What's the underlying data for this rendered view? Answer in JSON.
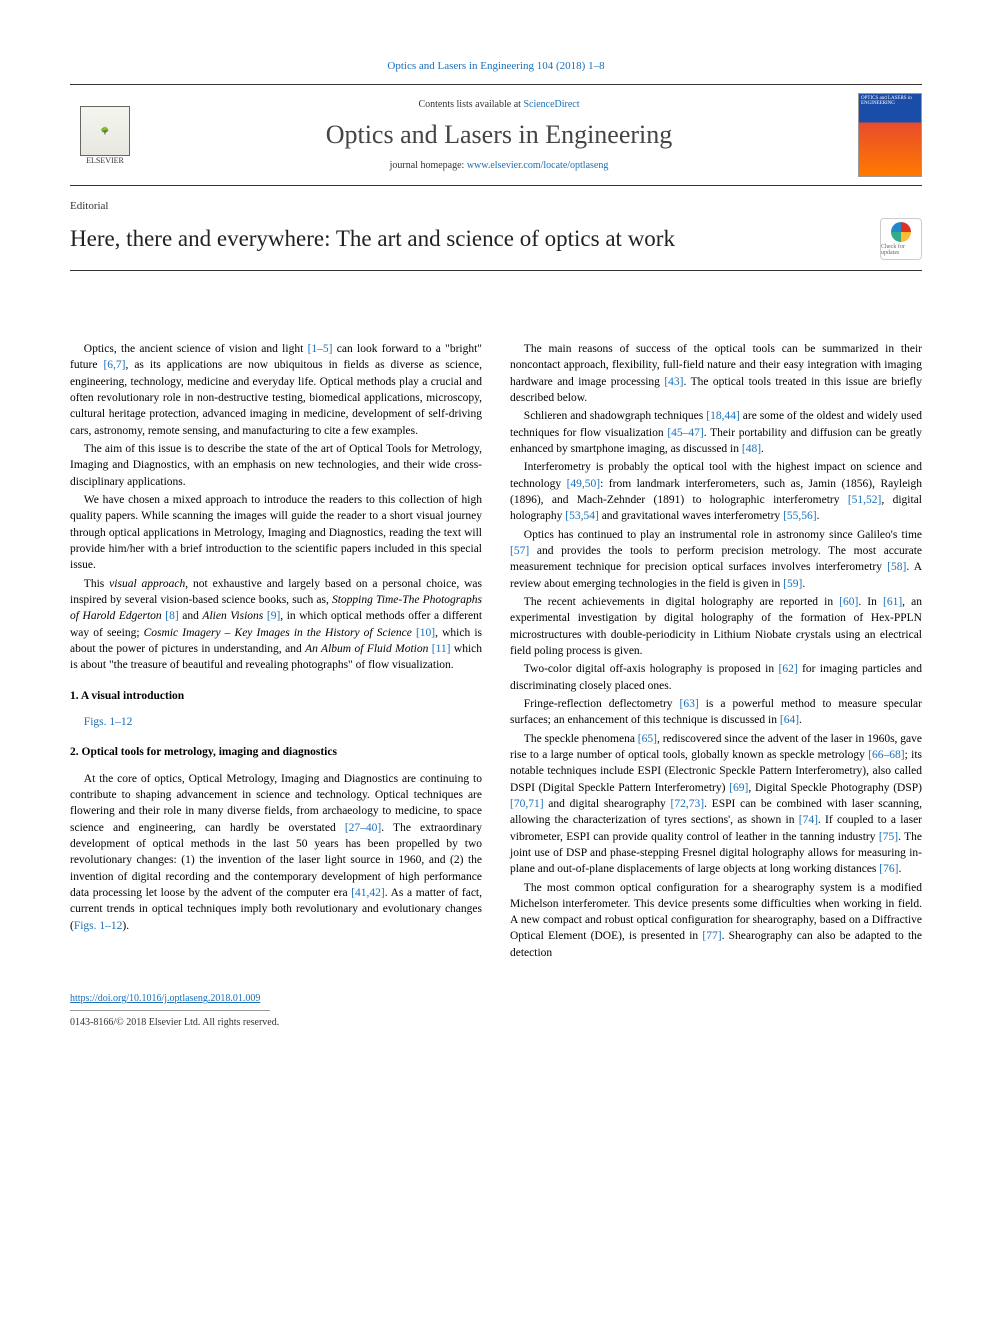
{
  "citation": "Optics and Lasers in Engineering 104 (2018) 1–8",
  "masthead": {
    "publisher": "ELSEVIER",
    "contents_prefix": "Contents lists available at ",
    "contents_link": "ScienceDirect",
    "journal": "Optics and Lasers in Engineering",
    "homepage_prefix": "journal homepage: ",
    "homepage_url": "www.elsevier.com/locate/optlaseng",
    "cover_text": "OPTICS and LASERS in ENGINEERING"
  },
  "article_type": "Editorial",
  "title": "Here, there and everywhere: The art and science of optics at work",
  "crossmark": "Check for updates",
  "body": {
    "left": {
      "p1a": "Optics, the ancient science of vision and light ",
      "p1_c1": "[1–5]",
      "p1b": " can look forward to a \"bright\" future ",
      "p1_c2": "[6,7]",
      "p1c": ", as its applications are now ubiquitous in fields as diverse as science, engineering, technology, medicine and everyday life. Optical methods play a crucial and often revolutionary role in non-destructive testing, biomedical applications, microscopy, cultural heritage protection, advanced imaging in medicine, development of self-driving cars, astronomy, remote sensing, and manufacturing to cite a few examples.",
      "p2": "The aim of this issue is to describe the state of the art of Optical Tools for Metrology, Imaging and Diagnostics, with an emphasis on new technologies, and their wide cross-disciplinary applications.",
      "p3": "We have chosen a mixed approach to introduce the readers to this collection of high quality papers. While scanning the images will guide the reader to a short visual journey through optical applications in Metrology, Imaging and Diagnostics, reading the text will provide him/her with a brief introduction to the scientific papers included in this special issue.",
      "p4a": "This ",
      "p4_em1": "visual approach",
      "p4b": ", not exhaustive and largely based on a personal choice, was inspired by several vision-based science books, such as, ",
      "p4_em2": "Stopping Time-The Photographs of Harold Edgerton",
      "p4c": " ",
      "p4_c1": "[8]",
      "p4d": " and ",
      "p4_em3": "Alien Visions",
      "p4e": " ",
      "p4_c2": "[9]",
      "p4f": ", in which optical methods offer a different way of seeing; ",
      "p4_em4": "Cosmic Imagery – Key Images in the History of Science",
      "p4g": " ",
      "p4_c3": "[10]",
      "p4h": ", which is about the power of pictures in understanding, and ",
      "p4_em5": "An Album of Fluid Motion",
      "p4i": " ",
      "p4_c4": "[11]",
      "p4j": " which is about \"the treasure of beautiful and revealing photographs\" of flow visualization.",
      "h1": "1. A visual introduction",
      "figs": "Figs. 1–12",
      "h2": "2. Optical tools for metrology, imaging and diagnostics",
      "p5a": "At the core of optics, Optical Metrology, Imaging and Diagnostics are continuing to contribute to shaping advancement in science and technology. Optical techniques are flowering and their role in many diverse fields, from archaeology to medicine, to space science and engineering, can hardly be overstated ",
      "p5_c1": "[27–40]",
      "p5b": ". The extraordinary development of optical methods in the last 50 years has been propelled by two revolutionary changes: (1) the invention of the laser light source in 1960, and (2) the invention of digital recording and the contemporary development of high performance data processing let loose by the advent of the computer era ",
      "p5_c2": "[41,42]",
      "p5c": ". As a matter of fact, current trends in optical techniques imply both revolutionary and evolutionary changes (",
      "p5_c3": "Figs. 1–12",
      "p5d": ")."
    },
    "right": {
      "p1a": "The main reasons of success of the optical tools can be summarized in their noncontact approach, flexibility, full-field nature and their easy integration with imaging hardware and image processing ",
      "p1_c1": "[43]",
      "p1b": ". The optical tools treated in this issue are briefly described below.",
      "p2a": "Schlieren and shadowgraph techniques ",
      "p2_c1": "[18,44]",
      "p2b": " are some of the oldest and widely used techniques for flow visualization ",
      "p2_c2": "[45–47]",
      "p2c": ". Their portability and diffusion can be greatly enhanced by smartphone imaging, as discussed in ",
      "p2_c3": "[48]",
      "p2d": ".",
      "p3a": "Interferometry is probably the optical tool with the highest impact on science and technology ",
      "p3_c1": "[49,50]",
      "p3b": ": from landmark interferometers, such as, Jamin (1856), Rayleigh (1896), and Mach-Zehnder (1891) to holographic interferometry ",
      "p3_c2": "[51,52]",
      "p3c": ", digital holography ",
      "p3_c3": "[53,54]",
      "p3d": " and gravitational waves interferometry ",
      "p3_c4": "[55,56]",
      "p3e": ".",
      "p4a": "Optics has continued to play an instrumental role in astronomy since Galileo's time ",
      "p4_c1": "[57]",
      "p4b": " and provides the tools to perform precision metrology. The most accurate measurement technique for precision optical surfaces involves interferometry ",
      "p4_c2": "[58]",
      "p4c": ". A review about emerging technologies in the field is given in ",
      "p4_c3": "[59]",
      "p4d": ".",
      "p5a": "The recent achievements in digital holography are reported in ",
      "p5_c1": "[60]",
      "p5b": ". In ",
      "p5_c2": "[61]",
      "p5c": ", an experimental investigation by digital holography of the formation of Hex-PPLN microstructures with double-periodicity in Lithium Niobate crystals using an electrical field poling process is given.",
      "p6a": "Two-color digital off-axis holography is proposed in ",
      "p6_c1": "[62]",
      "p6b": " for imaging particles and discriminating closely placed ones.",
      "p7a": "Fringe-reflection deflectometry ",
      "p7_c1": "[63]",
      "p7b": " is a powerful method to measure specular surfaces; an enhancement of this technique is discussed in ",
      "p7_c2": "[64]",
      "p7c": ".",
      "p8a": "The speckle phenomena ",
      "p8_c1": "[65]",
      "p8b": ", rediscovered since the advent of the laser in 1960s, gave rise to a large number of optical tools, globally known as speckle metrology ",
      "p8_c2": "[66–68]",
      "p8c": "; its notable techniques include ESPI (Electronic Speckle Pattern Interferometry), also called DSPI (Digital Speckle Pattern Interferometry) ",
      "p8_c3": "[69]",
      "p8d": ", Digital Speckle Photography (DSP) ",
      "p8_c4": "[70,71]",
      "p8e": " and digital shearography ",
      "p8_c5": "[72,73]",
      "p8f": ". ESPI can be combined with laser scanning, allowing the characterization of tyres sections', as shown in ",
      "p8_c6": "[74]",
      "p8g": ". If coupled to a laser vibrometer, ESPI can provide quality control of leather in the tanning industry ",
      "p8_c7": "[75]",
      "p8h": ". The joint use of DSP and phase-stepping Fresnel digital holography allows for measuring in-plane and out-of-plane displacements of large objects at long working distances ",
      "p8_c8": "[76]",
      "p8i": ".",
      "p9a": "The most common optical configuration for a shearography system is a modified Michelson interferometer. This device presents some difficulties when working in field. A new compact and robust optical configuration for shearography, based on a Diffractive Optical Element (DOE), is presented in ",
      "p9_c1": "[77]",
      "p9b": ". Shearography can also be adapted to the detection"
    }
  },
  "footer": {
    "doi": "https://doi.org/10.1016/j.optlaseng.2018.01.009",
    "issn": "0143-8166/© 2018 Elsevier Ltd. All rights reserved."
  },
  "colors": {
    "link": "#1a6fb8",
    "text": "#000000",
    "rule": "#333333"
  }
}
